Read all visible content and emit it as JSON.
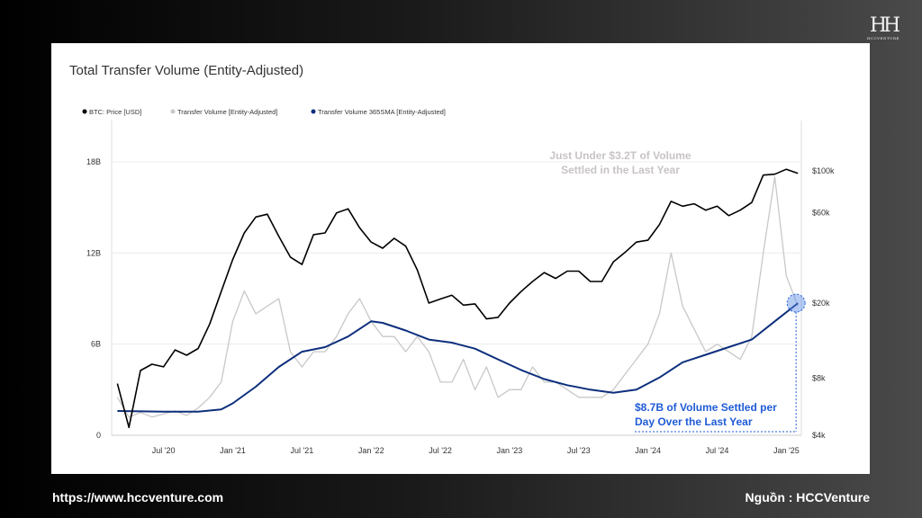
{
  "page": {
    "logo_text": "HCCVENTURE",
    "url": "https://www.hccventure.com",
    "source": "Nguồn : HCCVenture"
  },
  "chart_data": {
    "type": "line",
    "title": "Total Transfer Volume (Entity-Adjusted)",
    "legend_position": "top-left",
    "grid": true,
    "colors": {
      "price": "#000000",
      "volume": "#c8c8c8",
      "sma": "#0d2f7d",
      "annotation_blue": "#1f5bd6",
      "annotation_gray": "#c9c4c4"
    },
    "x_ticks": [
      "Jul '20",
      "Jan '21",
      "Jul '21",
      "Jan '22",
      "Jul '22",
      "Jan '23",
      "Jul '23",
      "Jan '24",
      "Jul '24",
      "Jan '25"
    ],
    "x_range": [
      "2020-03",
      "2025-02"
    ],
    "y_left": {
      "ticks": [
        "0",
        "6B",
        "12B",
        "18B"
      ],
      "values": [
        0,
        6,
        12,
        18
      ],
      "range": [
        0,
        18
      ],
      "unit": "B"
    },
    "y_right": {
      "scale": "log",
      "ticks": [
        "$4k",
        "$8k",
        "$20k",
        "$60k",
        "$100k"
      ],
      "values": [
        4000,
        8000,
        20000,
        60000,
        100000
      ]
    },
    "series": [
      {
        "name": "BTC: Price [USD]",
        "axis": "right",
        "key": "price",
        "points": [
          [
            "2020-03",
            7500
          ],
          [
            "2020-04",
            4400
          ],
          [
            "2020-05",
            8800
          ],
          [
            "2020-06",
            9500
          ],
          [
            "2020-07",
            9200
          ],
          [
            "2020-08",
            11300
          ],
          [
            "2020-09",
            10600
          ],
          [
            "2020-10",
            11500
          ],
          [
            "2020-11",
            15500
          ],
          [
            "2020-12",
            23000
          ],
          [
            "2021-01",
            34000
          ],
          [
            "2021-02",
            47000
          ],
          [
            "2021-03",
            57000
          ],
          [
            "2021-04",
            59000
          ],
          [
            "2021-05",
            45000
          ],
          [
            "2021-06",
            35000
          ],
          [
            "2021-07",
            32000
          ],
          [
            "2021-08",
            46000
          ],
          [
            "2021-09",
            47000
          ],
          [
            "2021-10",
            60000
          ],
          [
            "2021-11",
            63000
          ],
          [
            "2021-12",
            50000
          ],
          [
            "2022-01",
            42000
          ],
          [
            "2022-02",
            39000
          ],
          [
            "2022-03",
            44000
          ],
          [
            "2022-04",
            40000
          ],
          [
            "2022-05",
            30000
          ],
          [
            "2022-06",
            20000
          ],
          [
            "2022-07",
            21000
          ],
          [
            "2022-08",
            22000
          ],
          [
            "2022-09",
            19500
          ],
          [
            "2022-10",
            19800
          ],
          [
            "2022-11",
            16500
          ],
          [
            "2022-12",
            16800
          ],
          [
            "2023-01",
            20000
          ],
          [
            "2023-02",
            23000
          ],
          [
            "2023-03",
            26000
          ],
          [
            "2023-04",
            29000
          ],
          [
            "2023-05",
            27000
          ],
          [
            "2023-06",
            29500
          ],
          [
            "2023-07",
            29500
          ],
          [
            "2023-08",
            26000
          ],
          [
            "2023-09",
            26000
          ],
          [
            "2023-10",
            33000
          ],
          [
            "2023-11",
            37000
          ],
          [
            "2023-12",
            42000
          ],
          [
            "2024-01",
            43000
          ],
          [
            "2024-02",
            52000
          ],
          [
            "2024-03",
            69000
          ],
          [
            "2024-04",
            65000
          ],
          [
            "2024-05",
            67000
          ],
          [
            "2024-06",
            62000
          ],
          [
            "2024-07",
            65000
          ],
          [
            "2024-08",
            58000
          ],
          [
            "2024-09",
            62000
          ],
          [
            "2024-10",
            68000
          ],
          [
            "2024-11",
            95000
          ],
          [
            "2024-12",
            96000
          ],
          [
            "2025-01",
            102000
          ],
          [
            "2025-02",
            97000
          ]
        ]
      },
      {
        "name": "Transfer Volume [Entity-Adjusted]",
        "axis": "left",
        "key": "volume",
        "points": [
          [
            "2020-03",
            2.5
          ],
          [
            "2020-04",
            1.2
          ],
          [
            "2020-05",
            1.5
          ],
          [
            "2020-06",
            1.2
          ],
          [
            "2020-07",
            1.4
          ],
          [
            "2020-08",
            1.6
          ],
          [
            "2020-09",
            1.3
          ],
          [
            "2020-10",
            1.8
          ],
          [
            "2020-11",
            2.5
          ],
          [
            "2020-12",
            3.5
          ],
          [
            "2021-01",
            7.5
          ],
          [
            "2021-02",
            9.5
          ],
          [
            "2021-03",
            8.0
          ],
          [
            "2021-04",
            8.5
          ],
          [
            "2021-05",
            9.0
          ],
          [
            "2021-06",
            5.5
          ],
          [
            "2021-07",
            4.5
          ],
          [
            "2021-08",
            5.5
          ],
          [
            "2021-09",
            5.5
          ],
          [
            "2021-10",
            6.5
          ],
          [
            "2021-11",
            8.0
          ],
          [
            "2021-12",
            9.0
          ],
          [
            "2022-01",
            7.5
          ],
          [
            "2022-02",
            6.5
          ],
          [
            "2022-03",
            6.5
          ],
          [
            "2022-04",
            5.5
          ],
          [
            "2022-05",
            6.5
          ],
          [
            "2022-06",
            5.5
          ],
          [
            "2022-07",
            3.5
          ],
          [
            "2022-08",
            3.5
          ],
          [
            "2022-09",
            5.0
          ],
          [
            "2022-10",
            3.0
          ],
          [
            "2022-11",
            4.5
          ],
          [
            "2022-12",
            2.5
          ],
          [
            "2023-01",
            3.0
          ],
          [
            "2023-02",
            3.0
          ],
          [
            "2023-03",
            4.5
          ],
          [
            "2023-04",
            3.5
          ],
          [
            "2023-05",
            3.5
          ],
          [
            "2023-06",
            3.0
          ],
          [
            "2023-07",
            2.5
          ],
          [
            "2023-08",
            2.5
          ],
          [
            "2023-09",
            2.5
          ],
          [
            "2023-10",
            3.0
          ],
          [
            "2023-11",
            4.0
          ],
          [
            "2023-12",
            5.0
          ],
          [
            "2024-01",
            6.0
          ],
          [
            "2024-02",
            8.0
          ],
          [
            "2024-03",
            12.0
          ],
          [
            "2024-04",
            8.5
          ],
          [
            "2024-05",
            7.0
          ],
          [
            "2024-06",
            5.5
          ],
          [
            "2024-07",
            6.0
          ],
          [
            "2024-08",
            5.5
          ],
          [
            "2024-09",
            5.0
          ],
          [
            "2024-10",
            6.5
          ],
          [
            "2024-11",
            12.0
          ],
          [
            "2024-12",
            17.0
          ],
          [
            "2025-01",
            10.5
          ],
          [
            "2025-02",
            8.5
          ]
        ]
      },
      {
        "name": "Transfer Volume 365SMA [Entity-Adjusted]",
        "axis": "left",
        "key": "sma",
        "points": [
          [
            "2020-03",
            1.6
          ],
          [
            "2020-07",
            1.55
          ],
          [
            "2020-10",
            1.55
          ],
          [
            "2020-12",
            1.7
          ],
          [
            "2021-01",
            2.1
          ],
          [
            "2021-03",
            3.2
          ],
          [
            "2021-05",
            4.5
          ],
          [
            "2021-07",
            5.5
          ],
          [
            "2021-09",
            5.8
          ],
          [
            "2021-11",
            6.5
          ],
          [
            "2022-01",
            7.5
          ],
          [
            "2022-02",
            7.4
          ],
          [
            "2022-04",
            6.9
          ],
          [
            "2022-06",
            6.3
          ],
          [
            "2022-08",
            6.1
          ],
          [
            "2022-10",
            5.7
          ],
          [
            "2022-12",
            5.0
          ],
          [
            "2023-02",
            4.3
          ],
          [
            "2023-04",
            3.7
          ],
          [
            "2023-06",
            3.3
          ],
          [
            "2023-08",
            3.0
          ],
          [
            "2023-10",
            2.8
          ],
          [
            "2023-12",
            3.0
          ],
          [
            "2024-02",
            3.8
          ],
          [
            "2024-04",
            4.8
          ],
          [
            "2024-06",
            5.3
          ],
          [
            "2024-08",
            5.8
          ],
          [
            "2024-10",
            6.3
          ],
          [
            "2024-12",
            7.5
          ],
          [
            "2025-02",
            8.7
          ]
        ]
      }
    ],
    "annotations": {
      "top": [
        "Just Under $3.2T of Volume",
        "Settled in the Last Year"
      ],
      "bottom": [
        "$8.7B of Volume Settled per",
        "Day Over the Last Year"
      ]
    }
  }
}
